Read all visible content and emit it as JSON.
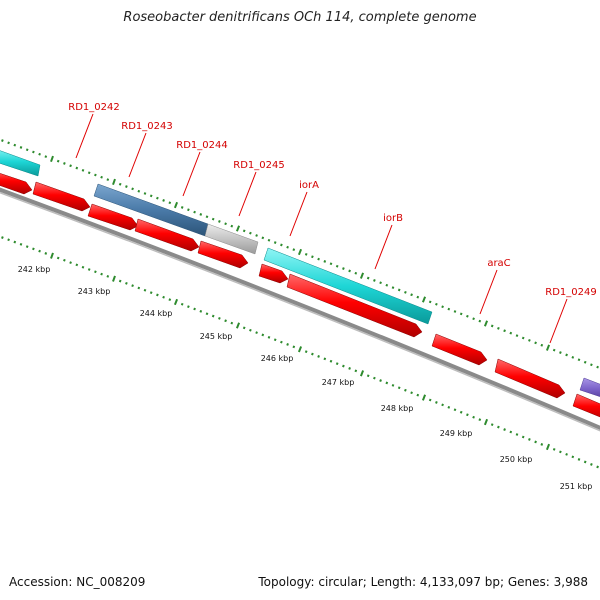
{
  "title": "Roseobacter denitrificans OCh 114, complete genome",
  "footer": {
    "accession": "Accession: NC_008209",
    "topology": "Topology: circular; Length: 4,133,097 bp; Genes: 3,988"
  },
  "colors": {
    "cds_red": "#ff0000",
    "cyan": "#22d3d3",
    "steelblue": "#4a7aa8",
    "gray_gene": "#c2c2c2",
    "purple": "#7b62c9",
    "tick_green": "#2e8b2e",
    "label_red": "#d40000",
    "backbone": "#888888"
  },
  "gene_labels": [
    "RD1_0242",
    "RD1_0243",
    "RD1_0244",
    "RD1_0245",
    "iorA",
    "iorB",
    "araC",
    "RD1_0249"
  ],
  "ruler_labels": [
    "242 kbp",
    "243 kbp",
    "244 kbp",
    "245 kbp",
    "246 kbp",
    "247 kbp",
    "248 kbp",
    "249 kbp",
    "250 kbp",
    "251 kbp"
  ]
}
